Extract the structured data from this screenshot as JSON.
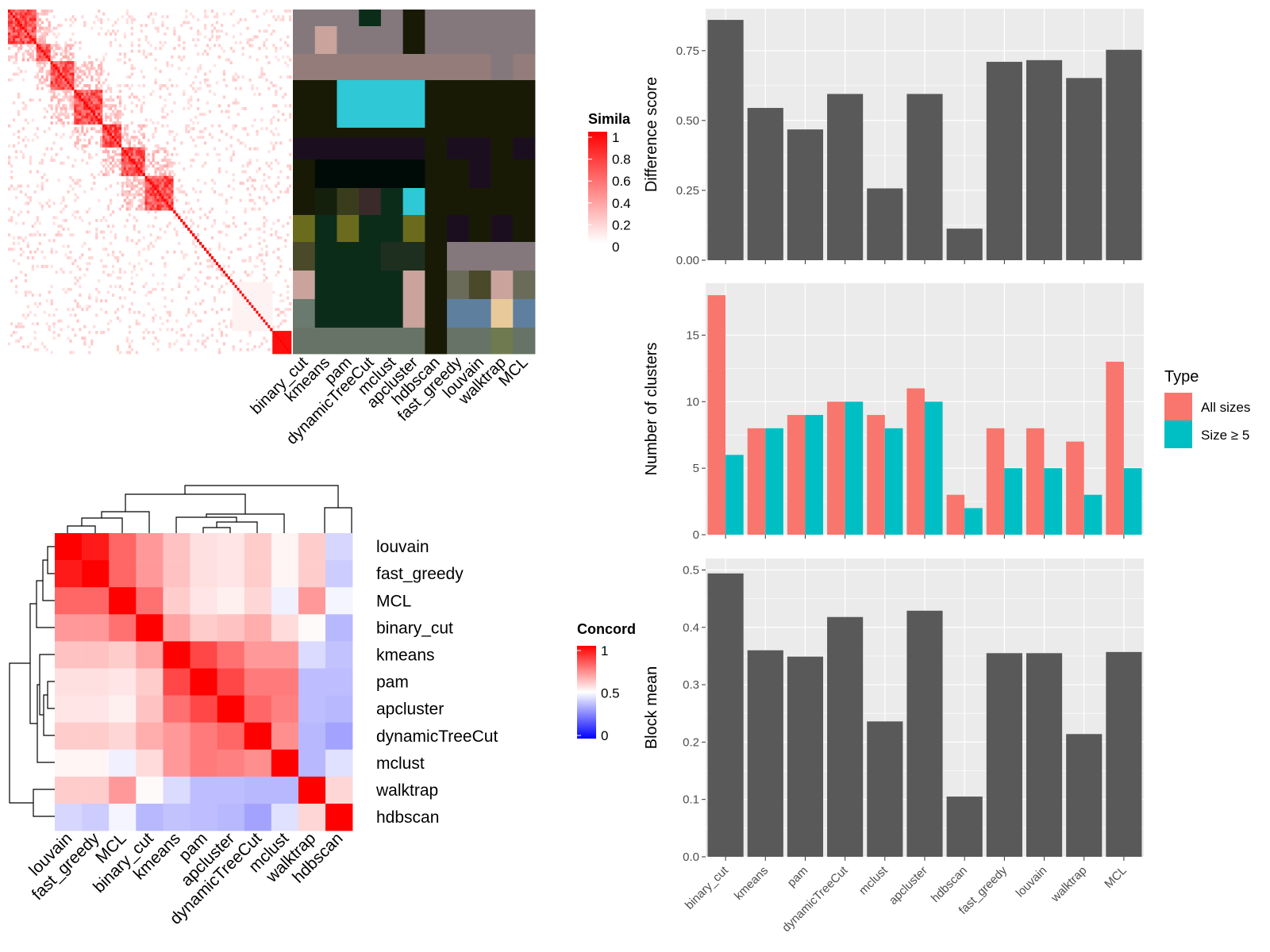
{
  "colors": {
    "panel_bg": "#ebebeb",
    "grid": "#ffffff",
    "bar": "#595959",
    "all_sizes": "#f8766d",
    "size_ge_5": "#00bfc4",
    "heat_high": "#ff0000",
    "heat_mid": "#ffffff",
    "heat_low": "#0000ff"
  },
  "similarity_legend": {
    "title": "Simila",
    "ticks": [
      "1",
      "0.8",
      "0.6",
      "0.4",
      "0.2",
      "0"
    ]
  },
  "concordance_legend": {
    "title": "Concord",
    "ticks": [
      "1",
      "0.5",
      "0"
    ]
  },
  "methods_top": [
    "binary_cut",
    "kmeans",
    "pam",
    "dynamicTreeCut",
    "mclust",
    "apcluster",
    "hdbscan",
    "fast_greedy",
    "louvain",
    "walktrap",
    "MCL"
  ],
  "annotation_colors": [
    [
      "#84787d",
      "#84787d",
      "#84787d",
      "#0c2c1a",
      "#84787d",
      "#181a06",
      "#84787d",
      "#84787d",
      "#84787d",
      "#84787d",
      "#84787d"
    ],
    [
      "#84787d",
      "#c9a39c",
      "#84787d",
      "#84787d",
      "#84787d",
      "#181a06",
      "#84787d",
      "#84787d",
      "#84787d",
      "#84787d",
      "#84787d"
    ],
    [
      "#937c79",
      "#937c79",
      "#937c79",
      "#937c79",
      "#937c79",
      "#937c79",
      "#937c79",
      "#937c79",
      "#937c79",
      "#84787d",
      "#937c79"
    ],
    [
      "#181a06",
      "#181a06",
      "#2ec8d6",
      "#2ec8d6",
      "#2ec8d6",
      "#2ec8d6",
      "#181a06",
      "#181a06",
      "#181a06",
      "#181a06",
      "#181a06"
    ],
    [
      "#181a06",
      "#181a06",
      "#181a06",
      "#181a06",
      "#181a06",
      "#181a06",
      "#181a06",
      "#181a06",
      "#181a06",
      "#181a06",
      "#181a06"
    ],
    [
      "#1b0f1f",
      "#1b0f1f",
      "#1b0f1f",
      "#1b0f1f",
      "#1b0f1f",
      "#1b0f1f",
      "#181a06",
      "#1b0f1f",
      "#1b0f1f",
      "#181a06",
      "#1b0f1f"
    ],
    [
      "#181a06",
      "#000a06",
      "#000a06",
      "#000a06",
      "#000a06",
      "#000a06",
      "#181a06",
      "#181a06",
      "#1b0f1f",
      "#181a06",
      "#181a06"
    ],
    [
      "#181a06",
      "#141f0c",
      "#3a3d1d",
      "#3a2a2a",
      "#0c2c1a",
      "#2ec8d6",
      "#181a06",
      "#181a06",
      "#181a06",
      "#181a06",
      "#181a06"
    ],
    [
      "#6b6b1e",
      "#0c2c1a",
      "#6b6b1e",
      "#0c2c1a",
      "#0c2c1a",
      "#6b6b1e",
      "#181a06",
      "#1b0f1f",
      "#181a06",
      "#1b0f1f",
      "#181a06"
    ],
    [
      "#4a4a2b",
      "#0c2c1a",
      "#0c2c1a",
      "#0c2c1a",
      "#1f2f1f",
      "#1f2f1f",
      "#181a06",
      "#84787d",
      "#84787d",
      "#84787d",
      "#84787d"
    ],
    [
      "#c9a39c",
      "#0c2c1a",
      "#0c2c1a",
      "#0c2c1a",
      "#0c2c1a",
      "#c9a39c",
      "#181a06",
      "#6b6b5a",
      "#4a4a2b",
      "#c9a39c",
      "#6b6b5a"
    ],
    [
      "#6b7a6e",
      "#0c2c1a",
      "#0c2c1a",
      "#0c2c1a",
      "#0c2c1a",
      "#c9a39c",
      "#181a06",
      "#5f7f9f",
      "#5f7f9f",
      "#e8c99a",
      "#5f7f9f"
    ],
    [
      "#667366",
      "#667366",
      "#667366",
      "#667366",
      "#667366",
      "#667366",
      "#181a06",
      "#667366",
      "#667366",
      "#707a50",
      "#667366"
    ]
  ],
  "concordance": {
    "row_labels": [
      "louvain",
      "fast_greedy",
      "MCL",
      "binary_cut",
      "kmeans",
      "pam",
      "apcluster",
      "dynamicTreeCut",
      "mclust",
      "walktrap",
      "hdbscan"
    ],
    "col_labels": [
      "louvain",
      "fast_greedy",
      "MCL",
      "binary_cut",
      "kmeans",
      "pam",
      "apcluster",
      "dynamicTreeCut",
      "mclust",
      "walktrap",
      "hdbscan"
    ],
    "values": [
      [
        1.0,
        0.95,
        0.8,
        0.7,
        0.62,
        0.56,
        0.55,
        0.6,
        0.52,
        0.6,
        0.42
      ],
      [
        0.95,
        1.0,
        0.8,
        0.7,
        0.62,
        0.56,
        0.55,
        0.6,
        0.52,
        0.6,
        0.4
      ],
      [
        0.8,
        0.8,
        1.0,
        0.78,
        0.6,
        0.55,
        0.53,
        0.58,
        0.47,
        0.7,
        0.48
      ],
      [
        0.7,
        0.7,
        0.78,
        1.0,
        0.68,
        0.6,
        0.62,
        0.66,
        0.57,
        0.51,
        0.36
      ],
      [
        0.62,
        0.62,
        0.6,
        0.68,
        1.0,
        0.86,
        0.78,
        0.7,
        0.7,
        0.43,
        0.38
      ],
      [
        0.56,
        0.56,
        0.55,
        0.6,
        0.86,
        1.0,
        0.86,
        0.76,
        0.76,
        0.37,
        0.37
      ],
      [
        0.55,
        0.55,
        0.53,
        0.62,
        0.78,
        0.86,
        1.0,
        0.8,
        0.75,
        0.37,
        0.36
      ],
      [
        0.6,
        0.6,
        0.58,
        0.66,
        0.7,
        0.76,
        0.8,
        1.0,
        0.72,
        0.36,
        0.32
      ],
      [
        0.52,
        0.52,
        0.47,
        0.57,
        0.7,
        0.76,
        0.75,
        0.72,
        1.0,
        0.36,
        0.44
      ],
      [
        0.6,
        0.6,
        0.7,
        0.51,
        0.43,
        0.37,
        0.37,
        0.36,
        0.36,
        1.0,
        0.58
      ],
      [
        0.42,
        0.4,
        0.48,
        0.36,
        0.38,
        0.37,
        0.36,
        0.32,
        0.44,
        0.58,
        1.0
      ]
    ]
  },
  "chart_data": [
    {
      "type": "bar",
      "categories": [
        "binary_cut",
        "kmeans",
        "pam",
        "dynamicTreeCut",
        "mclust",
        "apcluster",
        "hdbscan",
        "fast_greedy",
        "louvain",
        "walktrap",
        "MCL"
      ],
      "values": [
        0.86,
        0.545,
        0.468,
        0.595,
        0.257,
        0.595,
        0.113,
        0.71,
        0.716,
        0.652,
        0.753
      ],
      "ylabel": "Difference score",
      "ylim": [
        0,
        0.9
      ],
      "yticks": [
        "0.00",
        "0.25",
        "0.50",
        "0.75"
      ],
      "ytick_values": [
        0,
        0.25,
        0.5,
        0.75
      ]
    },
    {
      "type": "bar",
      "categories": [
        "binary_cut",
        "kmeans",
        "pam",
        "dynamicTreeCut",
        "mclust",
        "apcluster",
        "hdbscan",
        "fast_greedy",
        "louvain",
        "walktrap",
        "MCL"
      ],
      "series": [
        {
          "name": "All sizes",
          "values": [
            18,
            8,
            9,
            10,
            9,
            11,
            3,
            8,
            8,
            7,
            13
          ]
        },
        {
          "name": "Size ≥ 5",
          "values": [
            6,
            8,
            9,
            10,
            8,
            10,
            2,
            5,
            5,
            3,
            5
          ]
        }
      ],
      "ylabel": "Number of clusters",
      "ylim": [
        0,
        18.9
      ],
      "yticks": [
        "0",
        "5",
        "10",
        "15"
      ],
      "ytick_values": [
        0,
        5,
        10,
        15
      ],
      "legend_title": "Type"
    },
    {
      "type": "bar",
      "categories": [
        "binary_cut",
        "kmeans",
        "pam",
        "dynamicTreeCut",
        "mclust",
        "apcluster",
        "hdbscan",
        "fast_greedy",
        "louvain",
        "walktrap",
        "MCL"
      ],
      "values": [
        0.494,
        0.36,
        0.349,
        0.418,
        0.236,
        0.429,
        0.105,
        0.355,
        0.355,
        0.214,
        0.357
      ],
      "ylabel": "Block mean",
      "ylim": [
        0,
        0.52
      ],
      "yticks": [
        "0.0",
        "0.1",
        "0.2",
        "0.3",
        "0.4",
        "0.5"
      ],
      "ytick_values": [
        0,
        0.1,
        0.2,
        0.3,
        0.4,
        0.5
      ]
    }
  ]
}
